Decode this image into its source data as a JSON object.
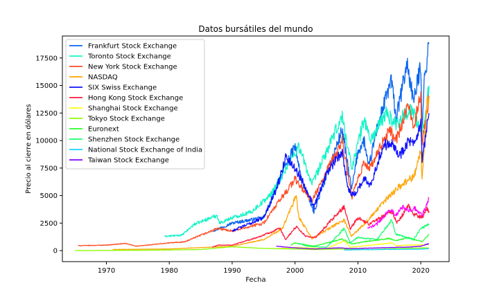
{
  "chart_data": {
    "type": "line",
    "title": "Datos bursátiles del mundo",
    "xlabel": "Fecha",
    "ylabel": "Precio al cierre en dólares",
    "xlim": [
      1963,
      2024.5
    ],
    "ylim": [
      -1000,
      19500
    ],
    "xticks": [
      1970,
      1980,
      1990,
      2000,
      2010,
      2020
    ],
    "yticks": [
      0,
      2500,
      5000,
      7500,
      10000,
      12500,
      15000,
      17500
    ],
    "grid": false,
    "legend": "top-left",
    "series": [
      {
        "name": "Frankfurt Stock Exchange",
        "color": "#0a64f0",
        "x": [
          1987,
          1990,
          1995,
          1998,
          2000,
          2001,
          2003,
          2007.5,
          2009,
          2010,
          2011,
          2011.7,
          2013,
          2015.3,
          2016.1,
          2017.8,
          2018.9,
          2020,
          2020.2,
          2020.5,
          2021.3
        ],
        "y": [
          1800,
          2500,
          3000,
          7000,
          9500,
          6500,
          3500,
          11000,
          5500,
          9000,
          10000,
          7500,
          11000,
          15500,
          12000,
          17000,
          13500,
          17000,
          11000,
          15000,
          18900
        ]
      },
      {
        "name": "Toronto Stock Exchange",
        "color": "#12f4c8",
        "x": [
          1979.3,
          1982,
          1984,
          1987.6,
          1988,
          1990,
          1993,
          1996,
          2000.6,
          2002.7,
          2007.5,
          2009,
          2011,
          2012,
          2014.5,
          2016,
          2018.5,
          2020.2,
          2021.3
        ],
        "y": [
          1300,
          1400,
          2400,
          3200,
          2500,
          3000,
          3500,
          5000,
          9500,
          6000,
          12200,
          7500,
          12000,
          10000,
          12500,
          11500,
          13000,
          10500,
          15000
        ]
      },
      {
        "name": "New York Stock Exchange",
        "color": "#ff4b22",
        "x": [
          1965.5,
          1970,
          1973,
          1974.8,
          1980,
          1982.5,
          1987.6,
          1990,
          1995,
          2000,
          2002.7,
          2007.5,
          2009,
          2011,
          2012,
          2015,
          2016,
          2018,
          2018.9,
          2020,
          2020.2,
          2021.3
        ],
        "y": [
          450,
          500,
          650,
          400,
          700,
          800,
          2000,
          1800,
          2500,
          6500,
          4500,
          10000,
          4800,
          8000,
          7500,
          11000,
          10000,
          13000,
          11500,
          14000,
          9500,
          14000
        ]
      },
      {
        "name": "NASDAQ",
        "color": "#ffa500",
        "x": [
          1971,
          1980,
          1990,
          1995,
          1998,
          2000.2,
          2000.6,
          2002.7,
          2007.8,
          2009,
          2012,
          2015,
          2017,
          2018.9,
          2020,
          2020.2,
          2021,
          2021.3
        ],
        "y": [
          100,
          150,
          400,
          1000,
          2000,
          5000,
          3000,
          1100,
          2800,
          1300,
          3000,
          5000,
          6000,
          6800,
          9000,
          6500,
          13500,
          14000
        ]
      },
      {
        "name": "SIX Swiss Exchange",
        "color": "#1010ff",
        "x": [
          1990,
          1993,
          1995,
          1997,
          1998.5,
          2000,
          2001.5,
          2003,
          2004,
          2005,
          2007.5,
          2008.5,
          2009.3,
          2011,
          2012,
          2014,
          2015.5,
          2016.5,
          2018,
          2019,
          2020,
          2020.2,
          2021.3
        ],
        "y": [
          1800,
          2500,
          3000,
          5500,
          8500,
          7500,
          6000,
          4000,
          5500,
          7000,
          9000,
          5500,
          5000,
          6500,
          6000,
          9500,
          10000,
          8500,
          10000,
          9500,
          11500,
          8000,
          12500
        ]
      },
      {
        "name": "Hong Kong Stock Exchange",
        "color": "#ff1a3c",
        "x": [
          1986.8,
          1987.8,
          1990,
          1994,
          1997.6,
          1998.5,
          2000.2,
          2001.7,
          2003.3,
          2007.8,
          2008.8,
          2010,
          2011.8,
          2015.3,
          2016.2,
          2018.1,
          2018.9,
          2020.2,
          2021,
          2021.3
        ],
        "y": [
          300,
          500,
          500,
          1200,
          2000,
          1000,
          2200,
          1300,
          1200,
          4000,
          2000,
          3000,
          2400,
          3600,
          2500,
          4100,
          3300,
          3000,
          3800,
          3600
        ]
      },
      {
        "name": "Shanghai Stock Exchange",
        "color": "#ffff14",
        "x": [
          1997,
          2000,
          2005,
          2007.8,
          2008.8,
          2015.4,
          2016,
          2021.3
        ],
        "y": [
          150,
          300,
          180,
          900,
          300,
          700,
          450,
          550
        ]
      },
      {
        "name": "Tokyo Stock Exchange",
        "color": "#8cff00",
        "x": [
          1965,
          1975,
          1985,
          1989.9,
          1995,
          2000,
          2003,
          2007,
          2012,
          2015,
          2018,
          2021.3
        ],
        "y": [
          0,
          30,
          100,
          350,
          200,
          150,
          100,
          150,
          90,
          170,
          220,
          250
        ]
      },
      {
        "name": "Euronext",
        "color": "#2aff2a",
        "x": [
          1999.3,
          2000,
          2003,
          2007.5,
          2009,
          2011,
          2015,
          2016,
          2018,
          2020.2,
          2021.3
        ],
        "y": [
          500,
          700,
          400,
          1050,
          600,
          800,
          1100,
          900,
          1200,
          800,
          1500
        ]
      },
      {
        "name": "Shenzhen Stock Exchange",
        "color": "#14ff6e",
        "x": [
          2000.5,
          2002,
          2005,
          2007.8,
          2008.8,
          2010,
          2013,
          2015.4,
          2016,
          2018.9,
          2020,
          2021.3
        ],
        "y": [
          650,
          400,
          300,
          2000,
          700,
          1200,
          1000,
          2800,
          1500,
          1000,
          2000,
          2400
        ]
      },
      {
        "name": "National Stock Exchange of India",
        "color": "#14d2ff",
        "x": [
          2007.8,
          2010,
          2015,
          2020,
          2021.3
        ],
        "y": [
          60,
          80,
          110,
          130,
          190
        ]
      },
      {
        "name": "Taiwan Stock Exchange",
        "color": "#8200ff",
        "x": [
          1997,
          2000,
          2003,
          2007,
          2009,
          2012,
          2015,
          2018,
          2020,
          2021.3
        ],
        "y": [
          400,
          250,
          150,
          250,
          180,
          230,
          280,
          320,
          400,
          650
        ]
      },
      {
        "name": "",
        "color": "#ff00ff",
        "x": [
          2011.5,
          2013,
          2015.2,
          2016,
          2017.2,
          2018.1,
          2019,
          2020.2,
          2021,
          2021.3
        ],
        "y": [
          2000,
          2400,
          3800,
          3200,
          4000,
          3600,
          3900,
          3200,
          4200,
          4800
        ]
      }
    ]
  }
}
